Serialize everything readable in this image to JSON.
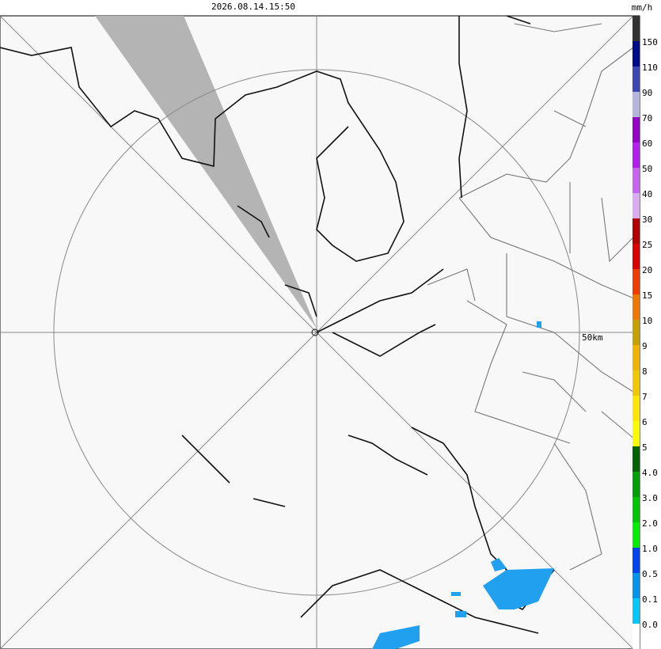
{
  "header": {
    "timestamp": "2026.08.14.15:50",
    "unit": "mm/h"
  },
  "map": {
    "range_label": "50km"
  },
  "legend": {
    "labels": [
      "150",
      "110",
      "90",
      "70",
      "60",
      "50",
      "40",
      "30",
      "25",
      "20",
      "15",
      "10",
      "9",
      "8",
      "7",
      "6",
      "5",
      "4.0",
      "3.0",
      "2.0",
      "1.0",
      "0.5",
      "0.1",
      "0.0"
    ],
    "colors": [
      "#333333",
      "#000a8c",
      "#3c46b4",
      "#b4b4dc",
      "#9600c8",
      "#b41ef0",
      "#c864f0",
      "#dcaaf5",
      "#b40000",
      "#dc0000",
      "#f03c00",
      "#f07800",
      "#c8a000",
      "#f0b400",
      "#f0c800",
      "#ffe600",
      "#fafa00",
      "#006400",
      "#00a000",
      "#00c800",
      "#00f000",
      "#0046f0",
      "#0096f0",
      "#00c8fa",
      "#ffffff"
    ]
  }
}
